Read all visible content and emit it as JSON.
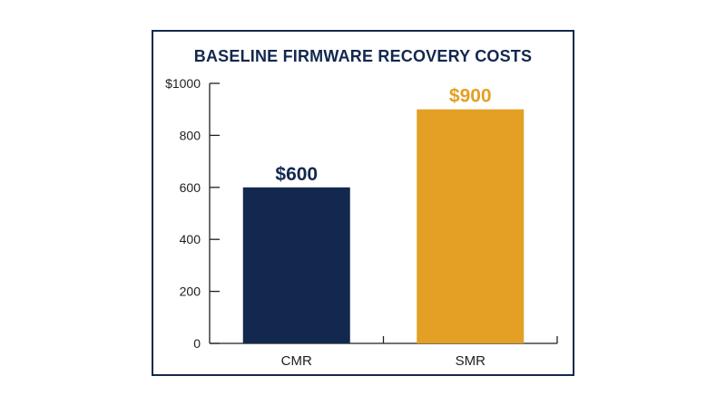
{
  "chart_data": {
    "type": "bar",
    "title": "BASELINE FIRMWARE RECOVERY COSTS",
    "xlabel": "",
    "ylabel": "",
    "categories": [
      "CMR",
      "SMR"
    ],
    "values": [
      600,
      900
    ],
    "data_labels": [
      "$600",
      "$900"
    ],
    "bar_colors": [
      "#13284f",
      "#e3a024"
    ],
    "ylim": [
      0,
      1000
    ],
    "yticks": [
      0,
      200,
      400,
      600,
      800,
      1000
    ],
    "ytick_labels": [
      "0",
      "200",
      "400",
      "600",
      "800",
      "$1000"
    ],
    "grid": false,
    "legend": "none"
  },
  "colors": {
    "frame": "#13284f",
    "axis": "#1f1f1f"
  }
}
